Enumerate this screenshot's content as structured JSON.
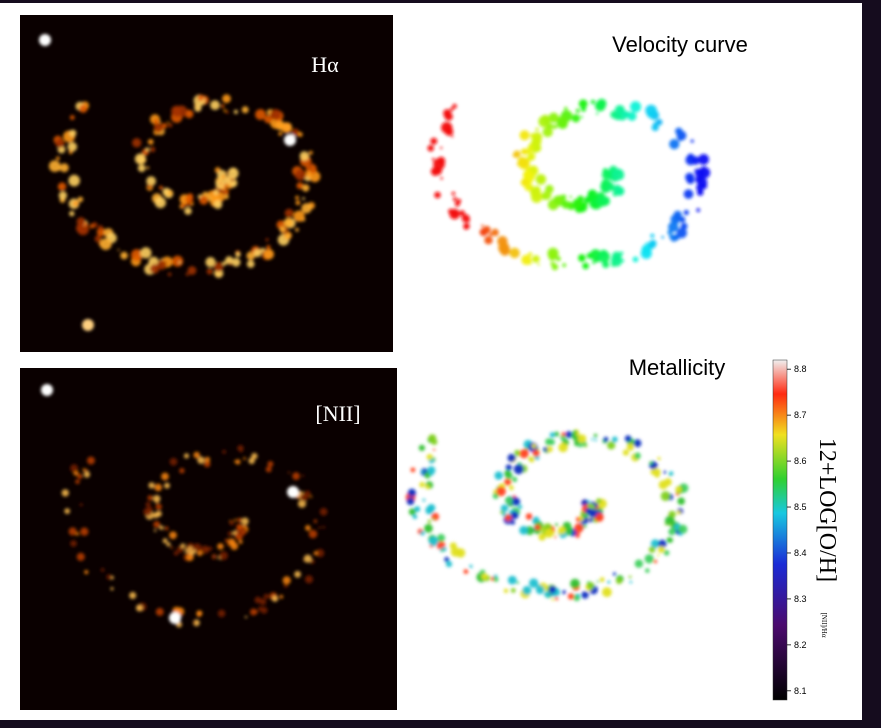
{
  "panels": {
    "halpha": {
      "label": "Hα"
    },
    "nii": {
      "label": "[NII]"
    },
    "velocity": {
      "label": "Velocity curve"
    },
    "metallicity": {
      "label": "Metallicity"
    }
  },
  "colorbar": {
    "title": "12+LOG[O/H]",
    "subscript": "[NII]/Hα",
    "lim": [
      8.08,
      8.82
    ],
    "ticks": [
      8.1,
      8.2,
      8.3,
      8.4,
      8.5,
      8.6,
      8.7,
      8.8
    ]
  }
}
